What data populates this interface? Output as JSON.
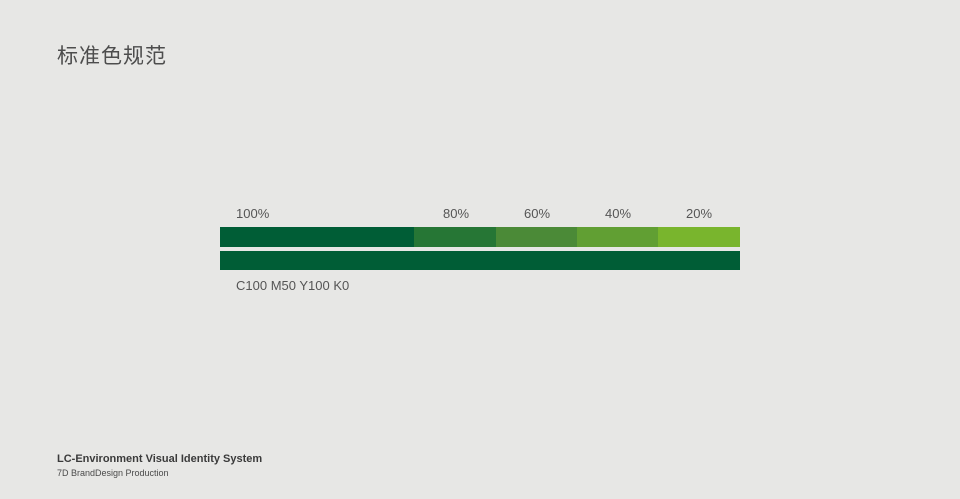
{
  "page": {
    "title": "标准色规范"
  },
  "swatch": {
    "tints": [
      {
        "label": "100%",
        "color": "#005d36"
      },
      {
        "label": "80%",
        "color": "#267635"
      },
      {
        "label": "60%",
        "color": "#4b8a37"
      },
      {
        "label": "40%",
        "color": "#619f33"
      },
      {
        "label": "20%",
        "color": "#79b52d"
      }
    ],
    "solid_color": "#005d36",
    "spec": "C100 M50 Y100 K0"
  },
  "footer": {
    "title": "LC-Environment Visual Identity System",
    "subtitle": "7D BrandDesign Production"
  }
}
